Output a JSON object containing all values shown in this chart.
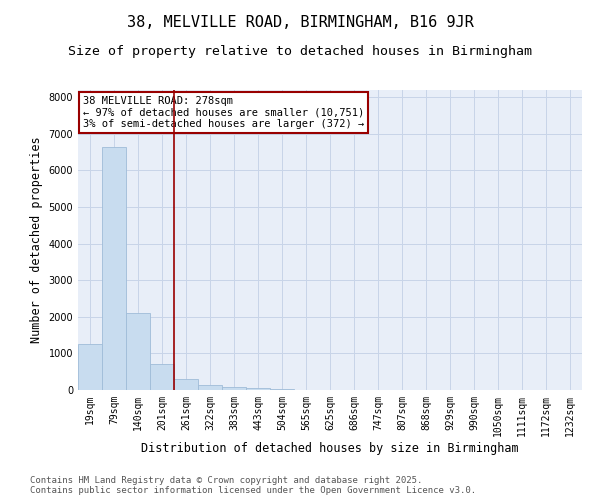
{
  "title_line1": "38, MELVILLE ROAD, BIRMINGHAM, B16 9JR",
  "title_line2": "Size of property relative to detached houses in Birmingham",
  "xlabel": "Distribution of detached houses by size in Birmingham",
  "ylabel": "Number of detached properties",
  "bar_color": "#C8DCEF",
  "bar_edge_color": "#A0BCD8",
  "grid_color": "#C8D4E8",
  "background_color": "#E8EEF8",
  "vline_color": "#990000",
  "vline_x_index": 4,
  "annotation_text": "38 MELVILLE ROAD: 278sqm\n← 97% of detached houses are smaller (10,751)\n3% of semi-detached houses are larger (372) →",
  "annotation_fontsize": 7.5,
  "categories": [
    "19sqm",
    "79sqm",
    "140sqm",
    "201sqm",
    "261sqm",
    "322sqm",
    "383sqm",
    "443sqm",
    "504sqm",
    "565sqm",
    "625sqm",
    "686sqm",
    "747sqm",
    "807sqm",
    "868sqm",
    "929sqm",
    "990sqm",
    "1050sqm",
    "1111sqm",
    "1172sqm",
    "1232sqm"
  ],
  "values": [
    1250,
    6650,
    2100,
    700,
    310,
    130,
    90,
    60,
    35,
    0,
    0,
    0,
    0,
    0,
    0,
    0,
    0,
    0,
    0,
    0,
    0
  ],
  "ylim": [
    0,
    8200
  ],
  "yticks": [
    0,
    1000,
    2000,
    3000,
    4000,
    5000,
    6000,
    7000,
    8000
  ],
  "footnote": "Contains HM Land Registry data © Crown copyright and database right 2025.\nContains public sector information licensed under the Open Government Licence v3.0.",
  "title_fontsize": 11,
  "subtitle_fontsize": 9.5,
  "tick_fontsize": 7,
  "ylabel_fontsize": 8.5,
  "xlabel_fontsize": 8.5,
  "footnote_fontsize": 6.5
}
